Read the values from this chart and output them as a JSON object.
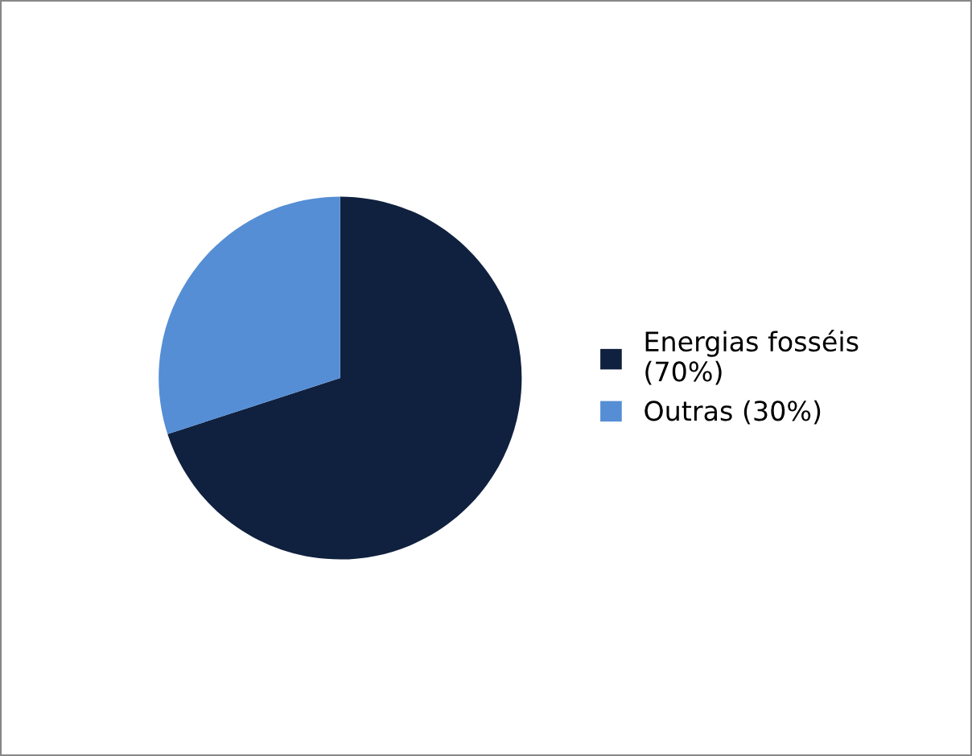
{
  "chart_data": {
    "type": "pie",
    "categories": [
      "Energias fosséis (70%)",
      "Outras (30%)"
    ],
    "values": [
      70,
      30
    ],
    "colors": [
      "#10213f",
      "#558ed5"
    ],
    "legend": "right"
  }
}
